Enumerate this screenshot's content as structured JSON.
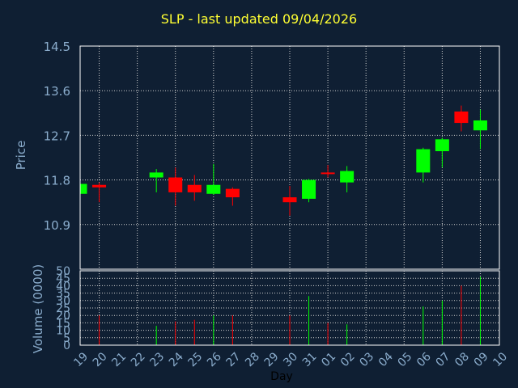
{
  "chart_data": [
    {
      "type": "candlestick",
      "title": "SLP - last updated 09/04/2026",
      "ylabel": "Price",
      "ylim": [
        10.0,
        14.5
      ],
      "yticks": [
        "14.5",
        "13.6",
        "12.7",
        "11.8",
        "10.9"
      ],
      "grid": true,
      "up_color": "#00ff00",
      "down_color": "#ff0000",
      "categories": [
        "19",
        "20",
        "21",
        "22",
        "23",
        "24",
        "25",
        "26",
        "27",
        "28",
        "29",
        "30",
        "31",
        "01",
        "02",
        "03",
        "04",
        "05",
        "06",
        "07",
        "08",
        "09",
        "10"
      ],
      "candles": [
        {
          "day": "19",
          "open": 11.52,
          "high": 11.72,
          "low": 11.5,
          "close": 11.72
        },
        {
          "day": "20",
          "open": 11.7,
          "high": 11.75,
          "low": 11.35,
          "close": 11.65
        },
        {
          "day": "23",
          "open": 11.85,
          "high": 12.02,
          "low": 11.55,
          "close": 11.95
        },
        {
          "day": "24",
          "open": 11.85,
          "high": 12.05,
          "low": 11.28,
          "close": 11.55
        },
        {
          "day": "25",
          "open": 11.7,
          "high": 11.9,
          "low": 11.38,
          "close": 11.55
        },
        {
          "day": "26",
          "open": 11.52,
          "high": 12.12,
          "low": 11.5,
          "close": 11.7
        },
        {
          "day": "27",
          "open": 11.62,
          "high": 11.65,
          "low": 11.28,
          "close": 11.45
        },
        {
          "day": "30",
          "open": 11.45,
          "high": 11.68,
          "low": 11.08,
          "close": 11.35
        },
        {
          "day": "31",
          "open": 11.42,
          "high": 11.82,
          "low": 11.35,
          "close": 11.8
        },
        {
          "day": "01",
          "open": 11.95,
          "high": 12.1,
          "low": 11.85,
          "close": 11.93
        },
        {
          "day": "02",
          "open": 11.75,
          "high": 12.08,
          "low": 11.55,
          "close": 11.98
        },
        {
          "day": "06",
          "open": 11.95,
          "high": 12.45,
          "low": 11.75,
          "close": 12.42
        },
        {
          "day": "07",
          "open": 12.38,
          "high": 12.65,
          "low": 12.05,
          "close": 12.62
        },
        {
          "day": "08",
          "open": 13.18,
          "high": 13.3,
          "low": 12.78,
          "close": 12.95
        },
        {
          "day": "09",
          "open": 12.8,
          "high": 13.22,
          "low": 12.42,
          "close": 13.0
        }
      ]
    },
    {
      "type": "bar",
      "ylabel": "Volume (0000)",
      "xlabel": "Day",
      "ylim": [
        0,
        50
      ],
      "yticks": [
        "50",
        "45",
        "40",
        "35",
        "30",
        "25",
        "20",
        "15",
        "10",
        "5",
        "0"
      ],
      "grid": true,
      "volumes": [
        {
          "day": "20",
          "value": 20,
          "color": "#ff0000"
        },
        {
          "day": "23",
          "value": 13,
          "color": "#00ff00"
        },
        {
          "day": "24",
          "value": 16,
          "color": "#ff0000"
        },
        {
          "day": "25",
          "value": 17,
          "color": "#ff0000"
        },
        {
          "day": "26",
          "value": 20,
          "color": "#00ff00"
        },
        {
          "day": "27",
          "value": 20,
          "color": "#ff0000"
        },
        {
          "day": "30",
          "value": 20,
          "color": "#ff0000"
        },
        {
          "day": "31",
          "value": 33,
          "color": "#00ff00"
        },
        {
          "day": "01",
          "value": 15,
          "color": "#ff0000"
        },
        {
          "day": "02",
          "value": 14,
          "color": "#00ff00"
        },
        {
          "day": "06",
          "value": 26,
          "color": "#00ff00"
        },
        {
          "day": "07",
          "value": 30,
          "color": "#00ff00"
        },
        {
          "day": "08",
          "value": 40,
          "color": "#ff0000"
        },
        {
          "day": "09",
          "value": 46,
          "color": "#00ff00"
        }
      ]
    }
  ]
}
